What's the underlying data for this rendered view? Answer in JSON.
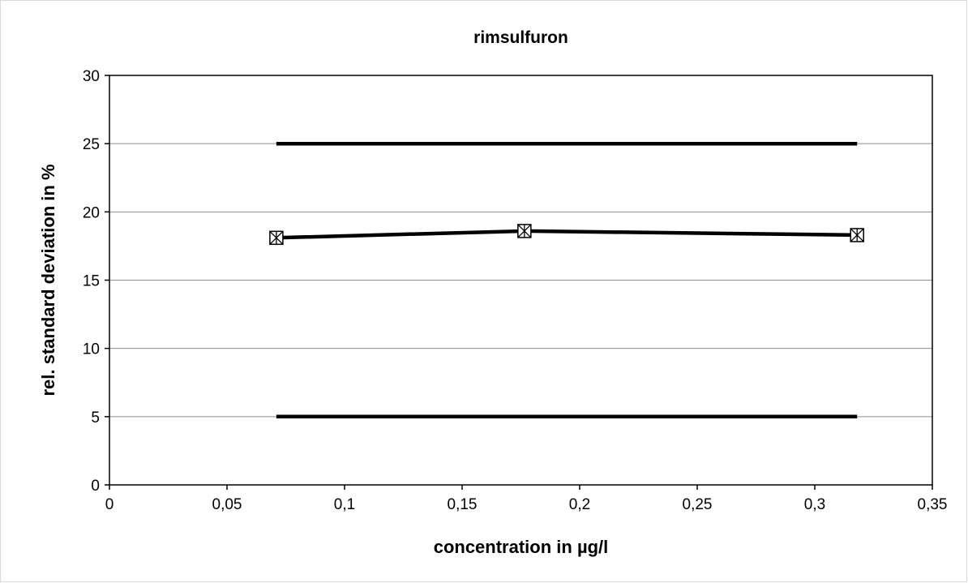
{
  "chart_data": {
    "type": "line",
    "title": "rimsulfuron",
    "xlabel": "concentration in µg/l",
    "ylabel": "rel. standard deviation in %",
    "xlim": [
      0,
      0.35
    ],
    "ylim": [
      0,
      30
    ],
    "x_ticks": [
      "0",
      "0,05",
      "0,1",
      "0,15",
      "0,2",
      "0,25",
      "0,3",
      "0,35"
    ],
    "x_tick_values": [
      0,
      0.05,
      0.1,
      0.15,
      0.2,
      0.25,
      0.3,
      0.35
    ],
    "y_ticks": [
      "0",
      "5",
      "10",
      "15",
      "20",
      "25",
      "30"
    ],
    "y_tick_values": [
      0,
      5,
      10,
      15,
      20,
      25,
      30
    ],
    "grid": "horizontal",
    "legend": "none",
    "series": [
      {
        "marker": "boxed-x",
        "color": "#000000",
        "x": [
          0.071,
          0.1765,
          0.318
        ],
        "y": [
          18.1,
          18.6,
          18.3
        ]
      },
      {
        "marker": "none",
        "color": "#000000",
        "x": [
          0.071,
          0.318
        ],
        "y": [
          25,
          25
        ]
      },
      {
        "marker": "none",
        "color": "#000000",
        "x": [
          0.071,
          0.318
        ],
        "y": [
          5,
          5
        ]
      }
    ]
  }
}
